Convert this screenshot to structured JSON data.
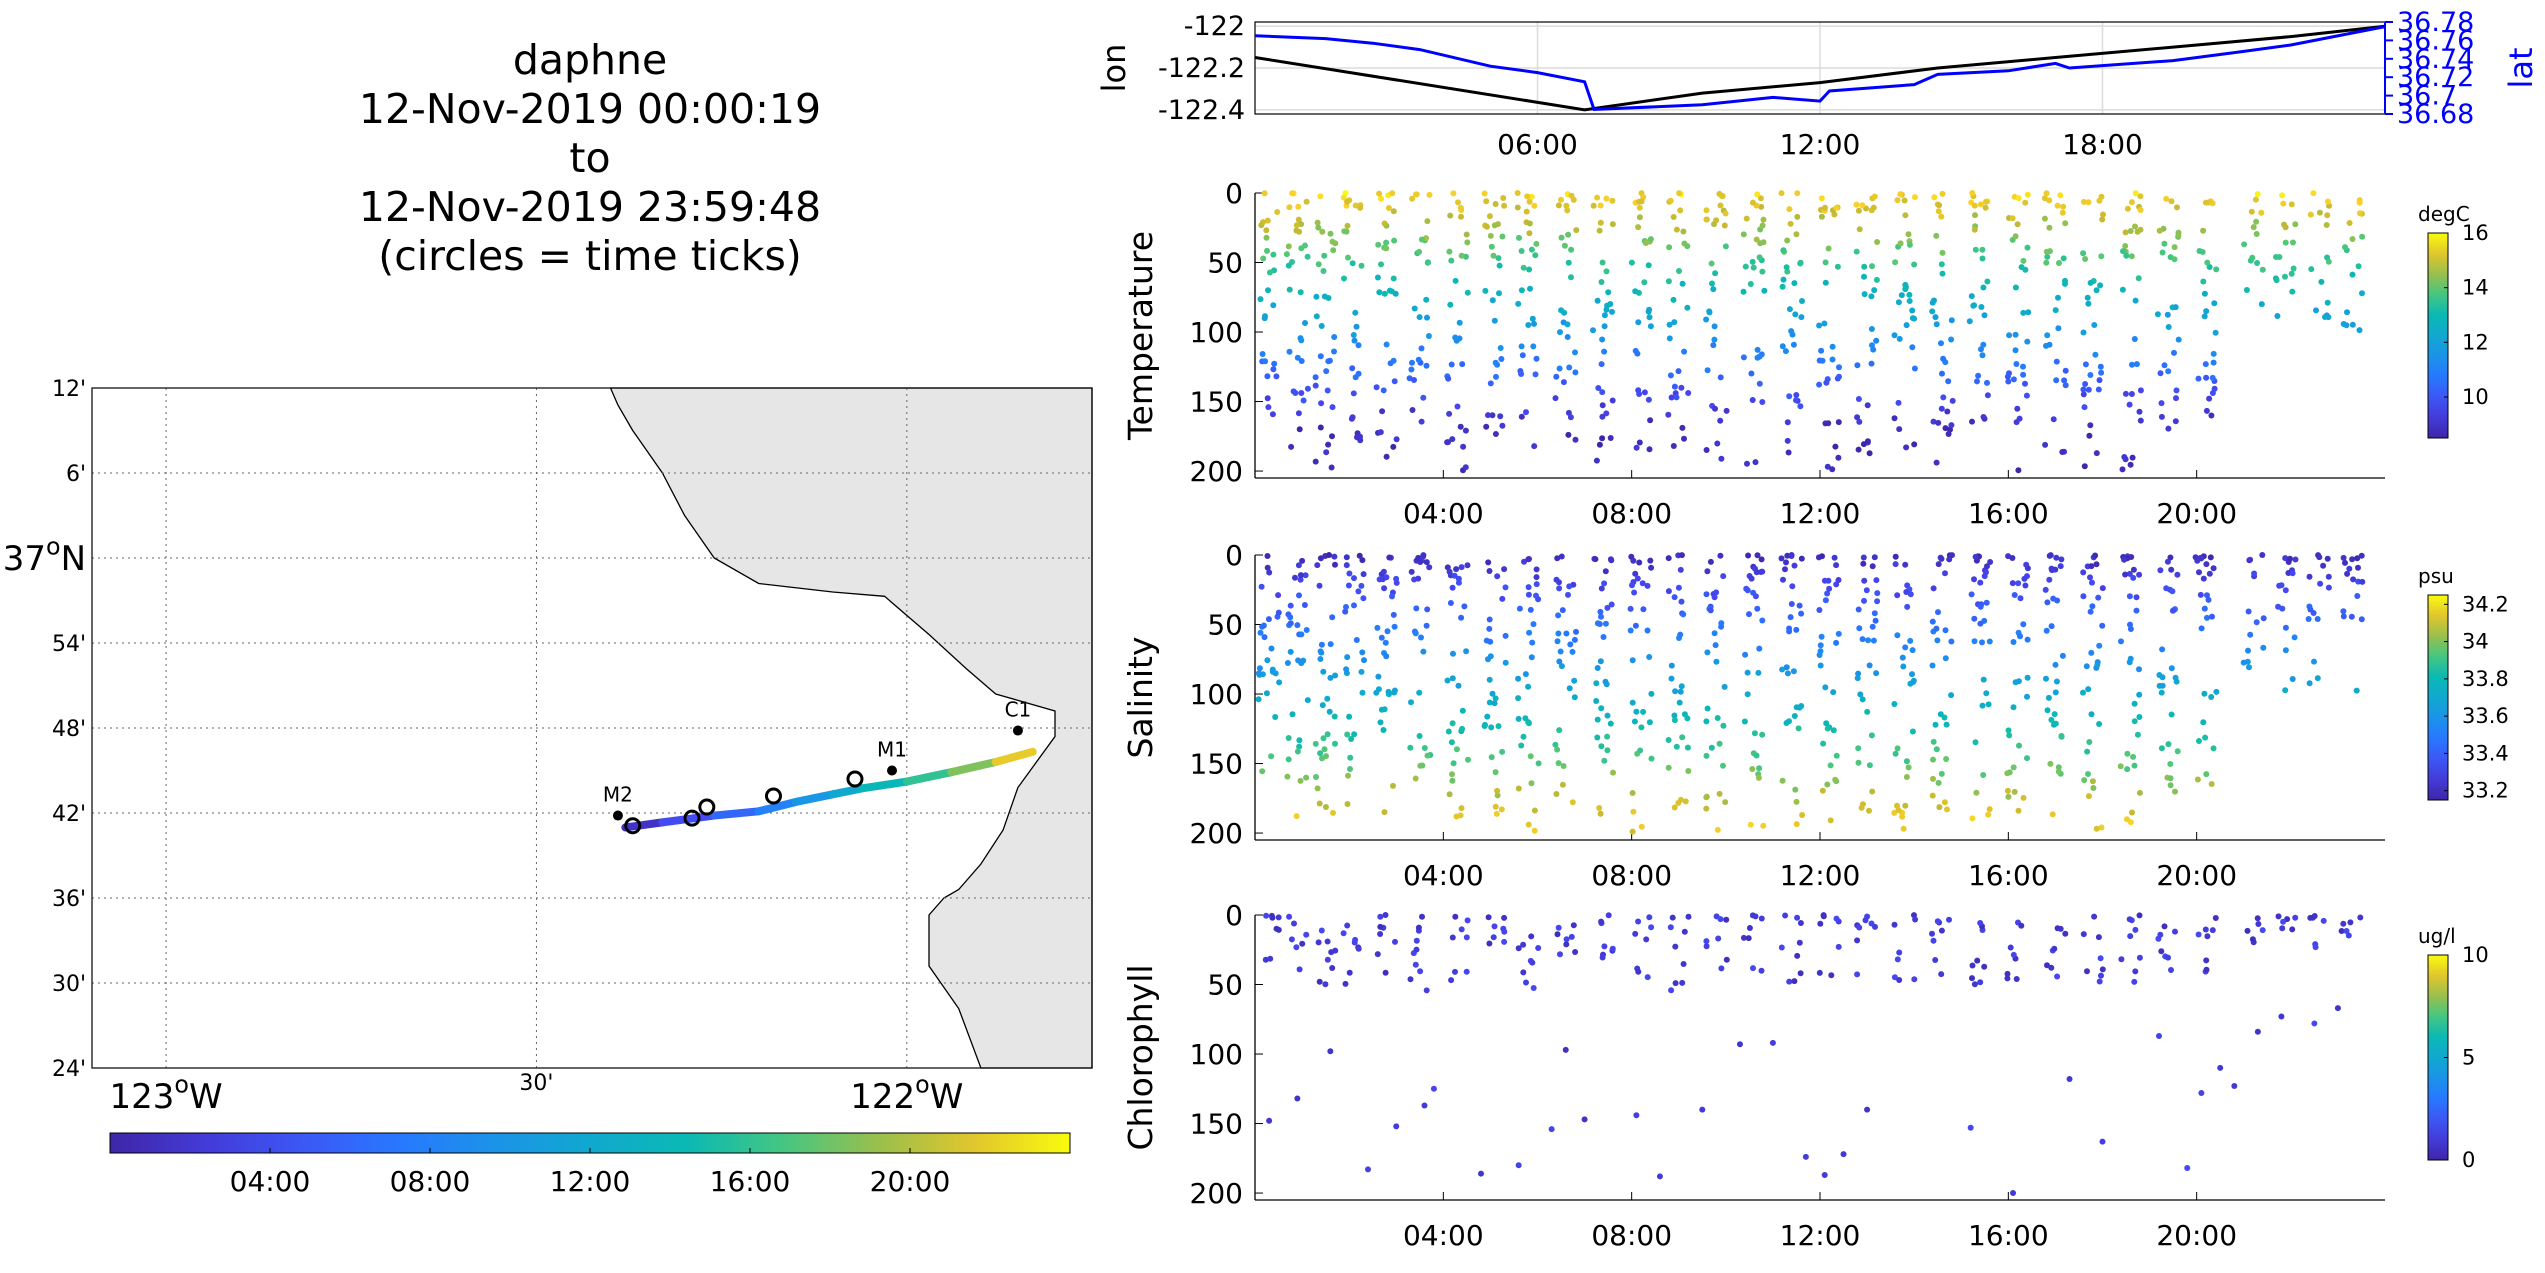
{
  "figure": {
    "title_lines": [
      "daphne",
      "12-Nov-2019 00:00:19",
      "to",
      "12-Nov-2019 23:59:48",
      "(circles = time ticks)"
    ],
    "colors": {
      "ocean": "#ffffff",
      "land": "#e6e6e6",
      "coast": "#000000",
      "lon_line": "#000000",
      "lat_line": "#0000ff",
      "grid": "#dcdcdc"
    }
  },
  "chart_data": [
    {
      "id": "map",
      "type": "scatter",
      "title": "",
      "xlim": [
        -123.1,
        -121.75
      ],
      "ylim": [
        36.4,
        37.2
      ],
      "lat_ticks": [
        {
          "value": 37.2,
          "label": "12'"
        },
        {
          "value": 37.1,
          "label": "6'"
        },
        {
          "value": 37.0,
          "label": "37",
          "sup": "o",
          "suffix": "N"
        },
        {
          "value": 36.9,
          "label": "54'"
        },
        {
          "value": 36.8,
          "label": "48'"
        },
        {
          "value": 36.7,
          "label": "42'"
        },
        {
          "value": 36.6,
          "label": "36'"
        },
        {
          "value": 36.5,
          "label": "30'"
        },
        {
          "value": 36.4,
          "label": "24'"
        }
      ],
      "lon_ticks": [
        {
          "value": -123.0,
          "label": "123",
          "sup": "o",
          "suffix": "W"
        },
        {
          "value": -122.5,
          "label": "30'"
        },
        {
          "value": -122.0,
          "label": "122",
          "sup": "o",
          "suffix": "W"
        }
      ],
      "grid": true,
      "stations": [
        {
          "name": "C1",
          "lon": -121.85,
          "lat": 36.797
        },
        {
          "name": "M1",
          "lon": -122.02,
          "lat": 36.75
        },
        {
          "name": "M2",
          "lon": -122.39,
          "lat": 36.697
        }
      ],
      "track": [
        {
          "lon": -122.38,
          "lat": 36.683,
          "hour": 0
        },
        {
          "lon": -122.33,
          "lat": 36.689,
          "hour": 3
        },
        {
          "lon": -122.26,
          "lat": 36.697,
          "hour": 5
        },
        {
          "lon": -122.2,
          "lat": 36.702,
          "hour": 7
        },
        {
          "lon": -122.15,
          "lat": 36.713,
          "hour": 9
        },
        {
          "lon": -122.1,
          "lat": 36.722,
          "hour": 11
        },
        {
          "lon": -122.06,
          "lat": 36.729,
          "hour": 13
        },
        {
          "lon": -122.0,
          "lat": 36.737,
          "hour": 15
        },
        {
          "lon": -121.94,
          "lat": 36.748,
          "hour": 17
        },
        {
          "lon": -121.88,
          "lat": 36.76,
          "hour": 20
        },
        {
          "lon": -121.83,
          "lat": 36.772,
          "hour": 24
        }
      ],
      "time_tick_circles": [
        {
          "lon": -122.37,
          "lat": 36.685
        },
        {
          "lon": -122.29,
          "lat": 36.694
        },
        {
          "lon": -122.27,
          "lat": 36.707
        },
        {
          "lon": -122.18,
          "lat": 36.72
        },
        {
          "lon": -122.07,
          "lat": 36.74
        }
      ],
      "colorbar": {
        "range": [
          0,
          24
        ],
        "ticks": [
          {
            "value": 4,
            "label": "04:00"
          },
          {
            "value": 8,
            "label": "08:00"
          },
          {
            "value": 12,
            "label": "12:00"
          },
          {
            "value": 16,
            "label": "16:00"
          },
          {
            "value": 20,
            "label": "20:00"
          }
        ]
      }
    },
    {
      "id": "lonlat",
      "type": "line",
      "xlim": [
        0,
        24
      ],
      "x_ticks": [
        {
          "value": 6,
          "label": "06:00"
        },
        {
          "value": 12,
          "label": "12:00"
        },
        {
          "value": 18,
          "label": "18:00"
        }
      ],
      "ylabel": "lon",
      "ylim": [
        -122.42,
        -121.98
      ],
      "y_ticks": [
        {
          "value": -122.0,
          "label": "-122"
        },
        {
          "value": -122.2,
          "label": "-122.2"
        },
        {
          "value": -122.4,
          "label": "-122.4"
        }
      ],
      "y2label": "lat",
      "y2lim": [
        36.68,
        36.78
      ],
      "y2_ticks": [
        {
          "value": 36.78,
          "label": "36.78"
        },
        {
          "value": 36.76,
          "label": "36.76"
        },
        {
          "value": 36.74,
          "label": "36.74"
        },
        {
          "value": 36.72,
          "label": "36.72"
        },
        {
          "value": 36.7,
          "label": "36.7"
        },
        {
          "value": 36.68,
          "label": "36.68"
        }
      ],
      "series": [
        {
          "axis": "left",
          "x": [
            0,
            7,
            9.5,
            12,
            14.5,
            17,
            19.5,
            22,
            24
          ],
          "y": [
            -122.15,
            -122.4,
            -122.32,
            -122.27,
            -122.2,
            -122.15,
            -122.1,
            -122.05,
            -122.0
          ]
        },
        {
          "axis": "right",
          "x": [
            0,
            1.5,
            2.5,
            3.5,
            5,
            6,
            7,
            7.2,
            9.5,
            11,
            12,
            12.2,
            14,
            14.5,
            16,
            17,
            17.3,
            19.5,
            21,
            22,
            24
          ],
          "y": [
            36.765,
            36.762,
            36.757,
            36.75,
            36.732,
            36.725,
            36.715,
            36.685,
            36.69,
            36.698,
            36.694,
            36.705,
            36.712,
            36.723,
            36.727,
            36.735,
            36.73,
            36.738,
            36.748,
            36.755,
            36.775
          ]
        }
      ]
    },
    {
      "id": "temperature",
      "type": "scatter",
      "ylabel": "Temperature",
      "xlim": [
        0,
        24
      ],
      "ylim": [
        0,
        205
      ],
      "y_reversed": true,
      "x_ticks": [
        {
          "value": 4,
          "label": "04:00"
        },
        {
          "value": 8,
          "label": "08:00"
        },
        {
          "value": 12,
          "label": "12:00"
        },
        {
          "value": 16,
          "label": "16:00"
        },
        {
          "value": 20,
          "label": "20:00"
        }
      ],
      "y_ticks": [
        {
          "value": 0,
          "label": "0"
        },
        {
          "value": 50,
          "label": "50"
        },
        {
          "value": 100,
          "label": "100"
        },
        {
          "value": 150,
          "label": "150"
        },
        {
          "value": 200,
          "label": "200"
        }
      ],
      "colorbar": {
        "units": "degC",
        "range": [
          8.5,
          16
        ],
        "ticks": [
          {
            "value": 10,
            "label": "10"
          },
          {
            "value": 12,
            "label": "12"
          },
          {
            "value": 14,
            "label": "14"
          },
          {
            "value": 16,
            "label": "16"
          }
        ]
      },
      "profiles": [
        {
          "t": 0.3,
          "maxd": 160
        },
        {
          "t": 0.9,
          "maxd": 195
        },
        {
          "t": 1.5,
          "maxd": 200
        },
        {
          "t": 2.1,
          "maxd": 180
        },
        {
          "t": 2.8,
          "maxd": 200
        },
        {
          "t": 3.5,
          "maxd": 170
        },
        {
          "t": 4.3,
          "maxd": 200
        },
        {
          "t": 5.1,
          "maxd": 190
        },
        {
          "t": 5.8,
          "maxd": 200
        },
        {
          "t": 6.6,
          "maxd": 185
        },
        {
          "t": 7.4,
          "maxd": 200
        },
        {
          "t": 8.2,
          "maxd": 200
        },
        {
          "t": 9.0,
          "maxd": 190
        },
        {
          "t": 9.8,
          "maxd": 200
        },
        {
          "t": 10.6,
          "maxd": 195
        },
        {
          "t": 11.4,
          "maxd": 200
        },
        {
          "t": 12.2,
          "maxd": 200
        },
        {
          "t": 13.0,
          "maxd": 195
        },
        {
          "t": 13.8,
          "maxd": 200
        },
        {
          "t": 14.6,
          "maxd": 200
        },
        {
          "t": 15.4,
          "maxd": 190
        },
        {
          "t": 16.2,
          "maxd": 200
        },
        {
          "t": 17.0,
          "maxd": 200
        },
        {
          "t": 17.8,
          "maxd": 200
        },
        {
          "t": 18.6,
          "maxd": 200
        },
        {
          "t": 19.4,
          "maxd": 175
        },
        {
          "t": 20.2,
          "maxd": 165
        },
        {
          "t": 21.2,
          "maxd": 85
        },
        {
          "t": 21.9,
          "maxd": 100
        },
        {
          "t": 22.6,
          "maxd": 95
        },
        {
          "t": 23.3,
          "maxd": 100
        }
      ]
    },
    {
      "id": "salinity",
      "type": "scatter",
      "ylabel": "Salinity",
      "xlim": [
        0,
        24
      ],
      "ylim": [
        0,
        205
      ],
      "y_reversed": true,
      "x_ticks": [
        {
          "value": 4,
          "label": "04:00"
        },
        {
          "value": 8,
          "label": "08:00"
        },
        {
          "value": 12,
          "label": "12:00"
        },
        {
          "value": 16,
          "label": "16:00"
        },
        {
          "value": 20,
          "label": "20:00"
        }
      ],
      "y_ticks": [
        {
          "value": 0,
          "label": "0"
        },
        {
          "value": 50,
          "label": "50"
        },
        {
          "value": 100,
          "label": "100"
        },
        {
          "value": 150,
          "label": "150"
        },
        {
          "value": 200,
          "label": "200"
        }
      ],
      "colorbar": {
        "units": "psu",
        "range": [
          33.15,
          34.25
        ],
        "ticks": [
          {
            "value": 33.2,
            "label": "33.2"
          },
          {
            "value": 33.4,
            "label": "33.4"
          },
          {
            "value": 33.6,
            "label": "33.6"
          },
          {
            "value": 33.8,
            "label": "33.8"
          },
          {
            "value": 34.0,
            "label": "34"
          },
          {
            "value": 34.2,
            "label": "34.2"
          }
        ]
      },
      "profiles": [
        {
          "t": 0.3,
          "maxd": 160
        },
        {
          "t": 0.9,
          "maxd": 195
        },
        {
          "t": 1.5,
          "maxd": 200
        },
        {
          "t": 2.1,
          "maxd": 180
        },
        {
          "t": 2.8,
          "maxd": 200
        },
        {
          "t": 3.5,
          "maxd": 170
        },
        {
          "t": 4.3,
          "maxd": 200
        },
        {
          "t": 5.1,
          "maxd": 190
        },
        {
          "t": 5.8,
          "maxd": 200
        },
        {
          "t": 6.6,
          "maxd": 185
        },
        {
          "t": 7.4,
          "maxd": 200
        },
        {
          "t": 8.2,
          "maxd": 200
        },
        {
          "t": 9.0,
          "maxd": 190
        },
        {
          "t": 9.8,
          "maxd": 200
        },
        {
          "t": 10.6,
          "maxd": 195
        },
        {
          "t": 11.4,
          "maxd": 200
        },
        {
          "t": 12.2,
          "maxd": 200
        },
        {
          "t": 13.0,
          "maxd": 195
        },
        {
          "t": 13.8,
          "maxd": 200
        },
        {
          "t": 14.6,
          "maxd": 200
        },
        {
          "t": 15.4,
          "maxd": 190
        },
        {
          "t": 16.2,
          "maxd": 200
        },
        {
          "t": 17.0,
          "maxd": 200
        },
        {
          "t": 17.8,
          "maxd": 200
        },
        {
          "t": 18.6,
          "maxd": 200
        },
        {
          "t": 19.4,
          "maxd": 175
        },
        {
          "t": 20.2,
          "maxd": 165
        },
        {
          "t": 21.2,
          "maxd": 85
        },
        {
          "t": 21.9,
          "maxd": 100
        },
        {
          "t": 22.6,
          "maxd": 95
        },
        {
          "t": 23.3,
          "maxd": 100
        }
      ]
    },
    {
      "id": "chlorophyll",
      "type": "scatter",
      "ylabel": "Chlorophyll",
      "xlim": [
        0,
        24
      ],
      "ylim": [
        0,
        205
      ],
      "y_reversed": true,
      "x_ticks": [
        {
          "value": 4,
          "label": "04:00"
        },
        {
          "value": 8,
          "label": "08:00"
        },
        {
          "value": 12,
          "label": "12:00"
        },
        {
          "value": 16,
          "label": "16:00"
        },
        {
          "value": 20,
          "label": "20:00"
        }
      ],
      "y_ticks": [
        {
          "value": 0,
          "label": "0"
        },
        {
          "value": 50,
          "label": "50"
        },
        {
          "value": 100,
          "label": "100"
        },
        {
          "value": 150,
          "label": "150"
        },
        {
          "value": 200,
          "label": "200"
        }
      ],
      "colorbar": {
        "units": "ug/l",
        "range": [
          0,
          10
        ],
        "ticks": [
          {
            "value": 0,
            "label": "0"
          },
          {
            "value": 5,
            "label": "5"
          },
          {
            "value": 10,
            "label": "10"
          }
        ]
      },
      "profiles": [
        {
          "t": 0.3,
          "maxd": 45
        },
        {
          "t": 0.9,
          "maxd": 40
        },
        {
          "t": 1.5,
          "maxd": 55
        },
        {
          "t": 2.1,
          "maxd": 50
        },
        {
          "t": 2.8,
          "maxd": 45
        },
        {
          "t": 3.5,
          "maxd": 60
        },
        {
          "t": 4.3,
          "maxd": 50
        },
        {
          "t": 5.1,
          "maxd": 45
        },
        {
          "t": 5.8,
          "maxd": 55
        },
        {
          "t": 6.6,
          "maxd": 50
        },
        {
          "t": 7.4,
          "maxd": 45
        },
        {
          "t": 8.2,
          "maxd": 50
        },
        {
          "t": 9.0,
          "maxd": 55
        },
        {
          "t": 9.8,
          "maxd": 45
        },
        {
          "t": 10.6,
          "maxd": 50
        },
        {
          "t": 11.4,
          "maxd": 55
        },
        {
          "t": 12.2,
          "maxd": 45
        },
        {
          "t": 13.0,
          "maxd": 50
        },
        {
          "t": 13.8,
          "maxd": 50
        },
        {
          "t": 14.6,
          "maxd": 45
        },
        {
          "t": 15.4,
          "maxd": 55
        },
        {
          "t": 16.2,
          "maxd": 50
        },
        {
          "t": 17.0,
          "maxd": 45
        },
        {
          "t": 17.8,
          "maxd": 50
        },
        {
          "t": 18.6,
          "maxd": 55
        },
        {
          "t": 19.4,
          "maxd": 50
        },
        {
          "t": 20.2,
          "maxd": 45
        },
        {
          "t": 21.2,
          "maxd": 20
        },
        {
          "t": 21.9,
          "maxd": 25
        },
        {
          "t": 22.6,
          "maxd": 30
        },
        {
          "t": 23.3,
          "maxd": 25
        }
      ],
      "extra_points": [
        {
          "t": 0.3,
          "d": 148
        },
        {
          "t": 0.9,
          "d": 132
        },
        {
          "t": 1.6,
          "d": 98
        },
        {
          "t": 2.4,
          "d": 183
        },
        {
          "t": 3.0,
          "d": 152
        },
        {
          "t": 3.6,
          "d": 137
        },
        {
          "t": 3.8,
          "d": 125
        },
        {
          "t": 4.8,
          "d": 186
        },
        {
          "t": 5.6,
          "d": 180
        },
        {
          "t": 6.3,
          "d": 154
        },
        {
          "t": 6.6,
          "d": 97
        },
        {
          "t": 7.0,
          "d": 147
        },
        {
          "t": 8.1,
          "d": 144
        },
        {
          "t": 8.6,
          "d": 188
        },
        {
          "t": 9.5,
          "d": 140
        },
        {
          "t": 10.3,
          "d": 93
        },
        {
          "t": 11.0,
          "d": 92
        },
        {
          "t": 11.7,
          "d": 174
        },
        {
          "t": 12.1,
          "d": 187
        },
        {
          "t": 12.5,
          "d": 172
        },
        {
          "t": 13.0,
          "d": 140
        },
        {
          "t": 15.2,
          "d": 153
        },
        {
          "t": 16.1,
          "d": 200
        },
        {
          "t": 17.3,
          "d": 118
        },
        {
          "t": 18.0,
          "d": 163
        },
        {
          "t": 19.2,
          "d": 87
        },
        {
          "t": 19.8,
          "d": 182
        },
        {
          "t": 20.1,
          "d": 128
        },
        {
          "t": 20.5,
          "d": 110
        },
        {
          "t": 20.8,
          "d": 123
        },
        {
          "t": 21.3,
          "d": 84
        },
        {
          "t": 21.8,
          "d": 73
        },
        {
          "t": 22.5,
          "d": 78
        },
        {
          "t": 23.0,
          "d": 67
        }
      ]
    }
  ]
}
